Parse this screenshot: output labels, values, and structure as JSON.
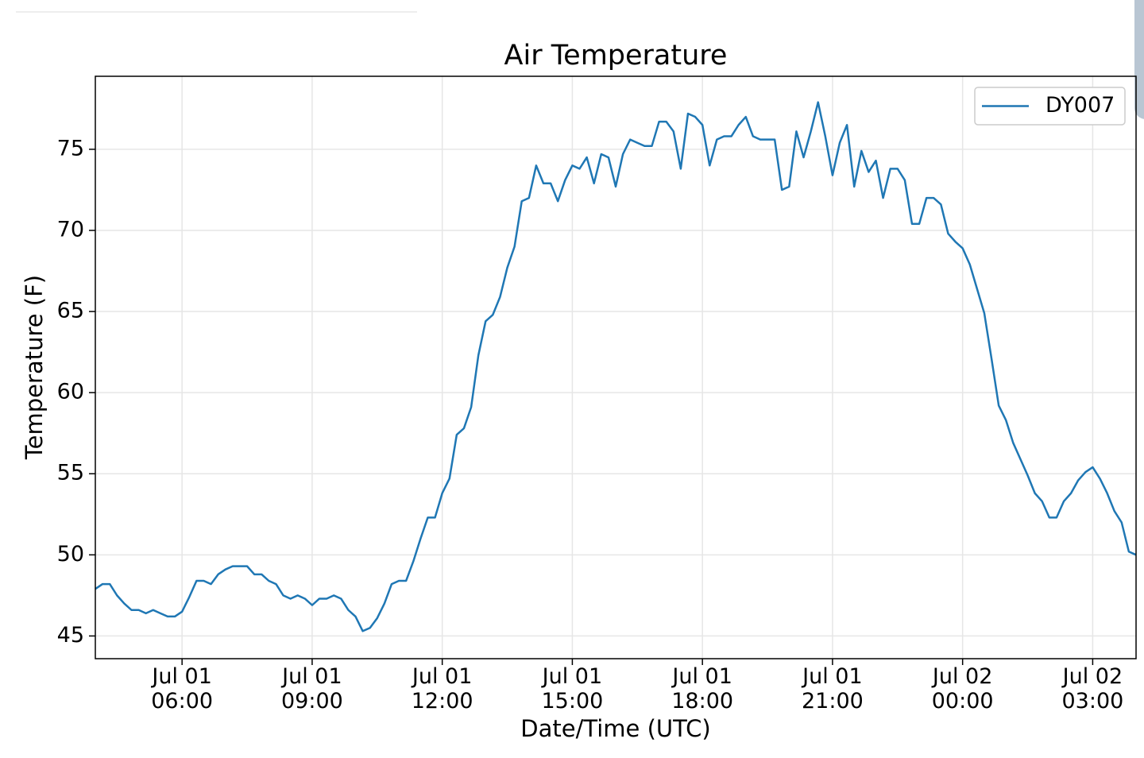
{
  "chart_data": {
    "type": "line",
    "title": "Air Temperature",
    "x_label": "Date/Time (UTC)",
    "y_label": "Temperature (F)",
    "x": [
      240,
      250,
      260,
      270,
      280,
      290,
      300,
      310,
      320,
      330,
      340,
      350,
      360,
      370,
      380,
      390,
      400,
      410,
      420,
      430,
      440,
      450,
      460,
      470,
      480,
      490,
      500,
      510,
      520,
      530,
      540,
      550,
      560,
      570,
      580,
      590,
      600,
      610,
      620,
      630,
      640,
      650,
      660,
      670,
      680,
      690,
      700,
      710,
      720,
      730,
      740,
      750,
      760,
      770,
      780,
      790,
      800,
      810,
      820,
      830,
      840,
      850,
      860,
      870,
      880,
      890,
      900,
      910,
      920,
      930,
      940,
      950,
      960,
      970,
      980,
      990,
      1000,
      1010,
      1020,
      1030,
      1040,
      1050,
      1060,
      1070,
      1080,
      1090,
      1100,
      1110,
      1120,
      1130,
      1140,
      1150,
      1160,
      1170,
      1180,
      1190,
      1200,
      1210,
      1220,
      1230,
      1240,
      1250,
      1260,
      1270,
      1280,
      1290,
      1300,
      1310,
      1320,
      1330,
      1340,
      1350,
      1360,
      1370,
      1380,
      1390,
      1400,
      1410,
      1420,
      1430,
      1440,
      1450,
      1460,
      1470,
      1480,
      1490,
      1500,
      1510,
      1520,
      1530,
      1540,
      1550,
      1560,
      1570,
      1580,
      1590,
      1600,
      1610,
      1620,
      1630,
      1640,
      1650,
      1660,
      1670,
      1680
    ],
    "series": [
      {
        "name": "DY007",
        "color": "#1f77b4",
        "values": [
          47.9,
          48.2,
          48.2,
          47.5,
          47.0,
          46.6,
          46.6,
          46.4,
          46.6,
          46.4,
          46.2,
          46.2,
          46.5,
          47.4,
          48.4,
          48.4,
          48.2,
          48.8,
          49.1,
          49.3,
          49.3,
          49.3,
          48.8,
          48.8,
          48.4,
          48.2,
          47.5,
          47.3,
          47.5,
          47.3,
          46.9,
          47.3,
          47.3,
          47.5,
          47.3,
          46.6,
          46.2,
          45.3,
          45.5,
          46.1,
          47.0,
          48.2,
          48.4,
          48.4,
          49.6,
          51.0,
          52.3,
          52.3,
          53.8,
          54.7,
          57.4,
          57.8,
          59.1,
          62.3,
          64.4,
          64.8,
          65.9,
          67.7,
          69.0,
          71.8,
          72.0,
          74.0,
          72.9,
          72.9,
          71.8,
          73.1,
          74.0,
          73.8,
          74.5,
          72.9,
          74.7,
          74.5,
          72.7,
          74.7,
          75.6,
          75.4,
          75.2,
          75.2,
          76.7,
          76.7,
          76.1,
          73.8,
          77.2,
          77.0,
          76.5,
          74.0,
          75.6,
          75.8,
          75.8,
          76.5,
          77.0,
          75.8,
          75.6,
          75.6,
          75.6,
          72.5,
          72.7,
          76.1,
          74.5,
          76.1,
          77.9,
          75.8,
          73.4,
          75.4,
          76.5,
          72.7,
          74.9,
          73.6,
          74.3,
          72.0,
          73.8,
          73.8,
          73.1,
          70.4,
          70.4,
          72.0,
          72.0,
          71.6,
          69.8,
          69.3,
          68.9,
          67.9,
          66.4,
          64.9,
          62.1,
          59.2,
          58.3,
          56.9,
          55.9,
          54.9,
          53.8,
          53.3,
          52.3,
          52.3,
          53.3,
          53.8,
          54.6,
          55.1,
          55.4,
          54.7,
          53.8,
          52.7,
          52.0,
          50.2,
          50.0
        ]
      }
    ],
    "xlim": [
      240,
      1680
    ],
    "xticks": [
      {
        "value": 360,
        "label": "Jul 01\n06:00"
      },
      {
        "value": 540,
        "label": "Jul 01\n09:00"
      },
      {
        "value": 720,
        "label": "Jul 01\n12:00"
      },
      {
        "value": 900,
        "label": "Jul 01\n15:00"
      },
      {
        "value": 1080,
        "label": "Jul 01\n18:00"
      },
      {
        "value": 1260,
        "label": "Jul 01\n21:00"
      },
      {
        "value": 1440,
        "label": "Jul 02\n00:00"
      },
      {
        "value": 1620,
        "label": "Jul 02\n03:00"
      }
    ],
    "ylim": [
      43.6,
      79.5
    ],
    "yticks": [
      45,
      50,
      55,
      60,
      65,
      70,
      75
    ],
    "grid": true,
    "legend": "upper right"
  }
}
